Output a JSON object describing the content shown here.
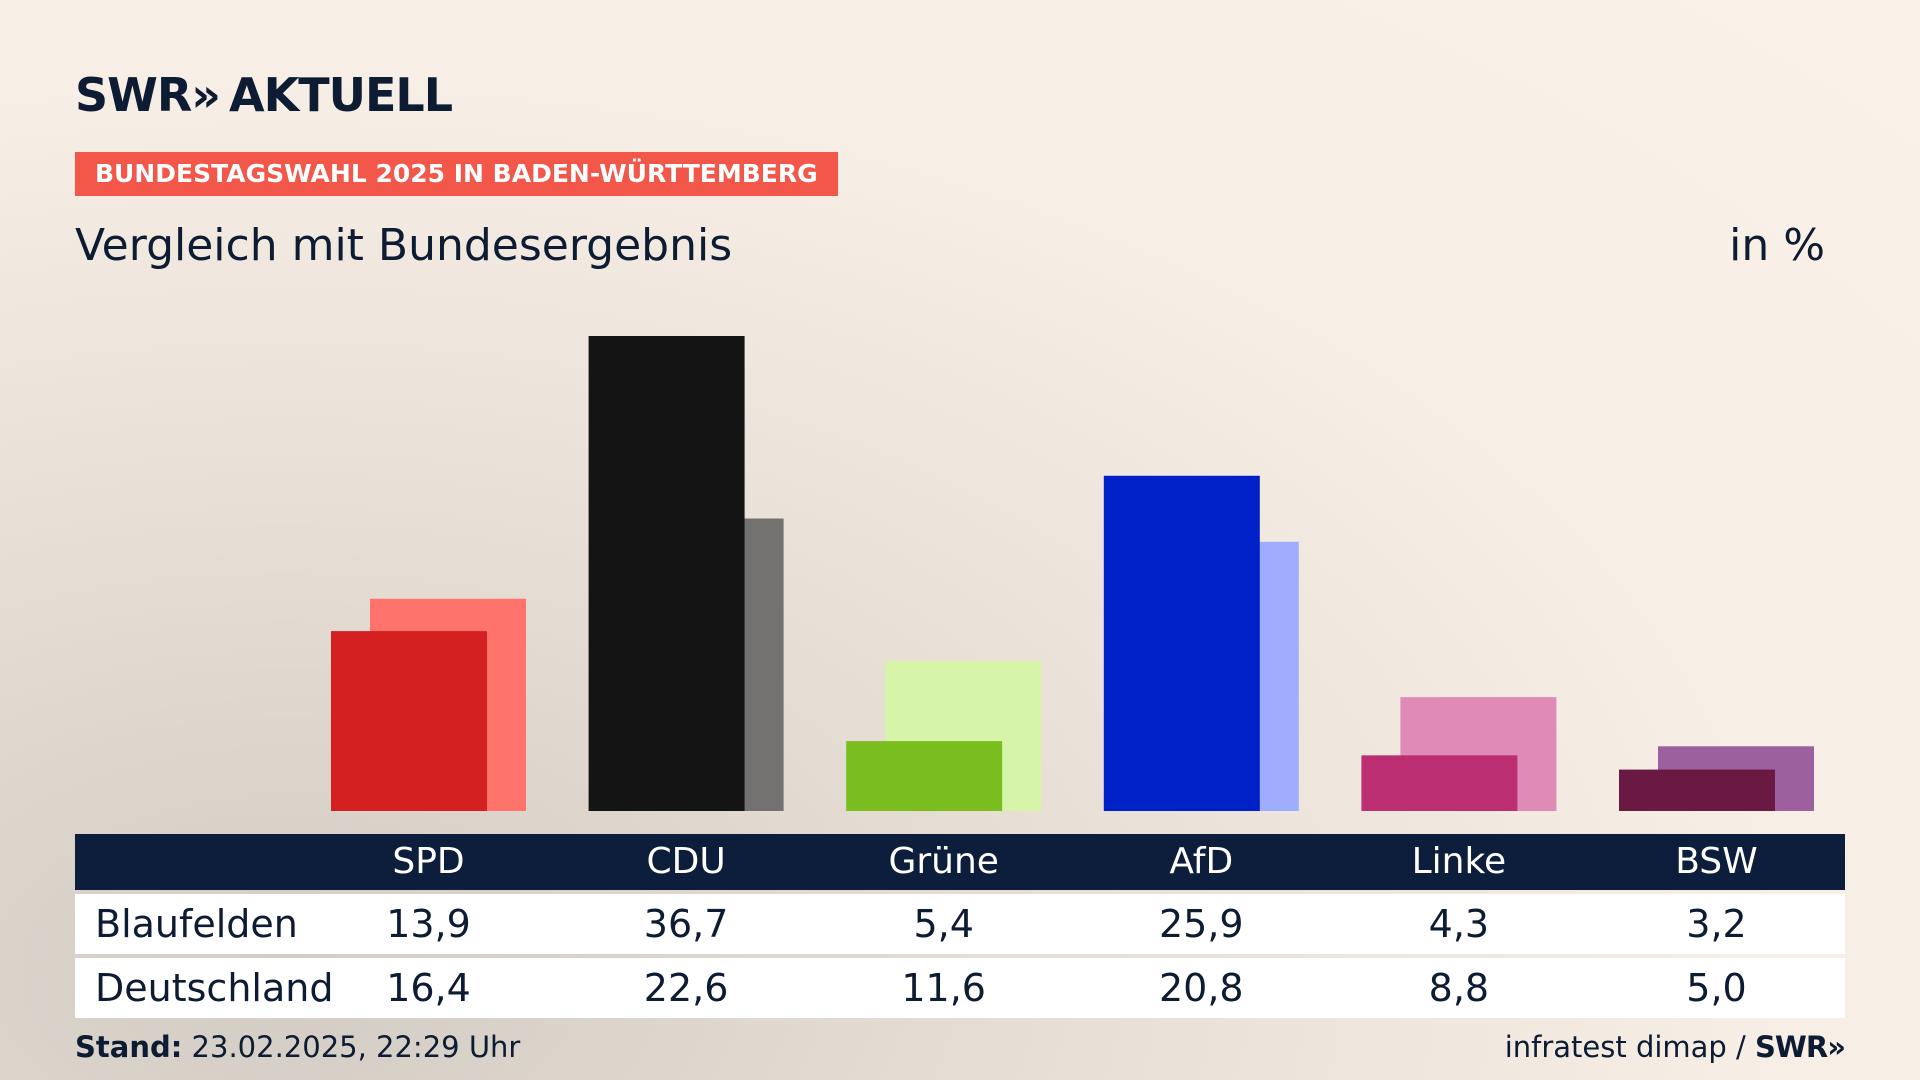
{
  "header": {
    "logo_text": "SWR",
    "logo_chevrons": "»",
    "logo_suffix": "AKTUELL",
    "banner": "BUNDESTAGSWAHL 2025 IN BADEN-WÜRTTEMBERG",
    "subtitle": "Vergleich mit Bundesergebnis",
    "unit": "in %"
  },
  "chart_data": {
    "type": "bar",
    "categories": [
      "SPD",
      "CDU",
      "Grüne",
      "AfD",
      "Linke",
      "BSW"
    ],
    "series": [
      {
        "name": "Blaufelden",
        "values": [
          13.9,
          36.7,
          5.4,
          25.9,
          4.3,
          3.2
        ],
        "colors": [
          "#d42020",
          "#141414",
          "#7abd1e",
          "#0020c8",
          "#bb2e72",
          "#6a1a42"
        ]
      },
      {
        "name": "Deutschland",
        "values": [
          16.4,
          22.6,
          11.6,
          20.8,
          8.8,
          5.0
        ],
        "colors": [
          "#ff746a",
          "#737270",
          "#d7f5a8",
          "#9fadff",
          "#e08ab8",
          "#9d609e"
        ]
      }
    ],
    "value_labels": {
      "Blaufelden": [
        "13,9",
        "36,7",
        "5,4",
        "25,9",
        "4,3",
        "3,2"
      ],
      "Deutschland": [
        "16,4",
        "22,6",
        "11,6",
        "20,8",
        "8,8",
        "5,0"
      ]
    },
    "ylim": [
      0,
      36.7
    ],
    "grid": false
  },
  "footer": {
    "stand_label": "Stand:",
    "stand_value": "23.02.2025, 22:29 Uhr",
    "source": "infratest dimap /",
    "source_logo": "SWR»"
  }
}
